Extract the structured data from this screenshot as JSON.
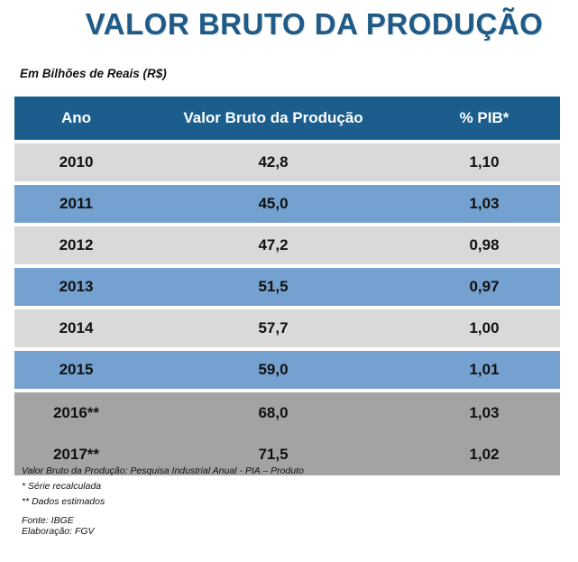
{
  "title": "VALOR BRUTO DA PRODUÇÃO",
  "subtitle": "Em Bilhões de Reais (R$)",
  "table": {
    "headers": [
      "Ano",
      "Valor Bruto da Produção",
      "% PIB*"
    ],
    "rows": [
      {
        "ano": "2010",
        "valor": "42,8",
        "pib": "1,10"
      },
      {
        "ano": "2011",
        "valor": "45,0",
        "pib": "1,03"
      },
      {
        "ano": "2012",
        "valor": "47,2",
        "pib": "0,98"
      },
      {
        "ano": "2013",
        "valor": "51,5",
        "pib": "0,97"
      },
      {
        "ano": "2014",
        "valor": "57,7",
        "pib": "1,00"
      },
      {
        "ano": "2015",
        "valor": "59,0",
        "pib": "1,01"
      },
      {
        "ano": "2016**",
        "valor": "68,0",
        "pib": "1,03"
      },
      {
        "ano": "2017**",
        "valor": "71,5",
        "pib": "1,02"
      }
    ]
  },
  "notes": {
    "source_line": "Valor Bruto da Produção:  Pesquisa Industrial Anual  - PIA – Produto",
    "note1": "* Série recalculada",
    "note2": "** Dados estimados",
    "fonte": "Fonte: IBGE",
    "elaboracao": "Elaboração: FGV"
  },
  "colors": {
    "header_bg": "#1b5e8e",
    "title": "#1f5b86",
    "row_light": "#d9d9d9",
    "row_blue": "#74a1cf",
    "row_estimated": "#a3a3a3"
  },
  "chart_data": {
    "type": "table",
    "title": "VALOR BRUTO DA PRODUÇÃO",
    "subtitle": "Em Bilhões de Reais (R$)",
    "columns": [
      "Ano",
      "Valor Bruto da Produção",
      "% PIB*"
    ],
    "categories": [
      "2010",
      "2011",
      "2012",
      "2013",
      "2014",
      "2015",
      "2016**",
      "2017**"
    ],
    "series": [
      {
        "name": "Valor Bruto da Produção",
        "values": [
          42.8,
          45.0,
          47.2,
          51.5,
          57.7,
          59.0,
          68.0,
          71.5
        ]
      },
      {
        "name": "% PIB*",
        "values": [
          1.1,
          1.03,
          0.98,
          0.97,
          1.0,
          1.01,
          1.03,
          1.02
        ]
      }
    ]
  }
}
